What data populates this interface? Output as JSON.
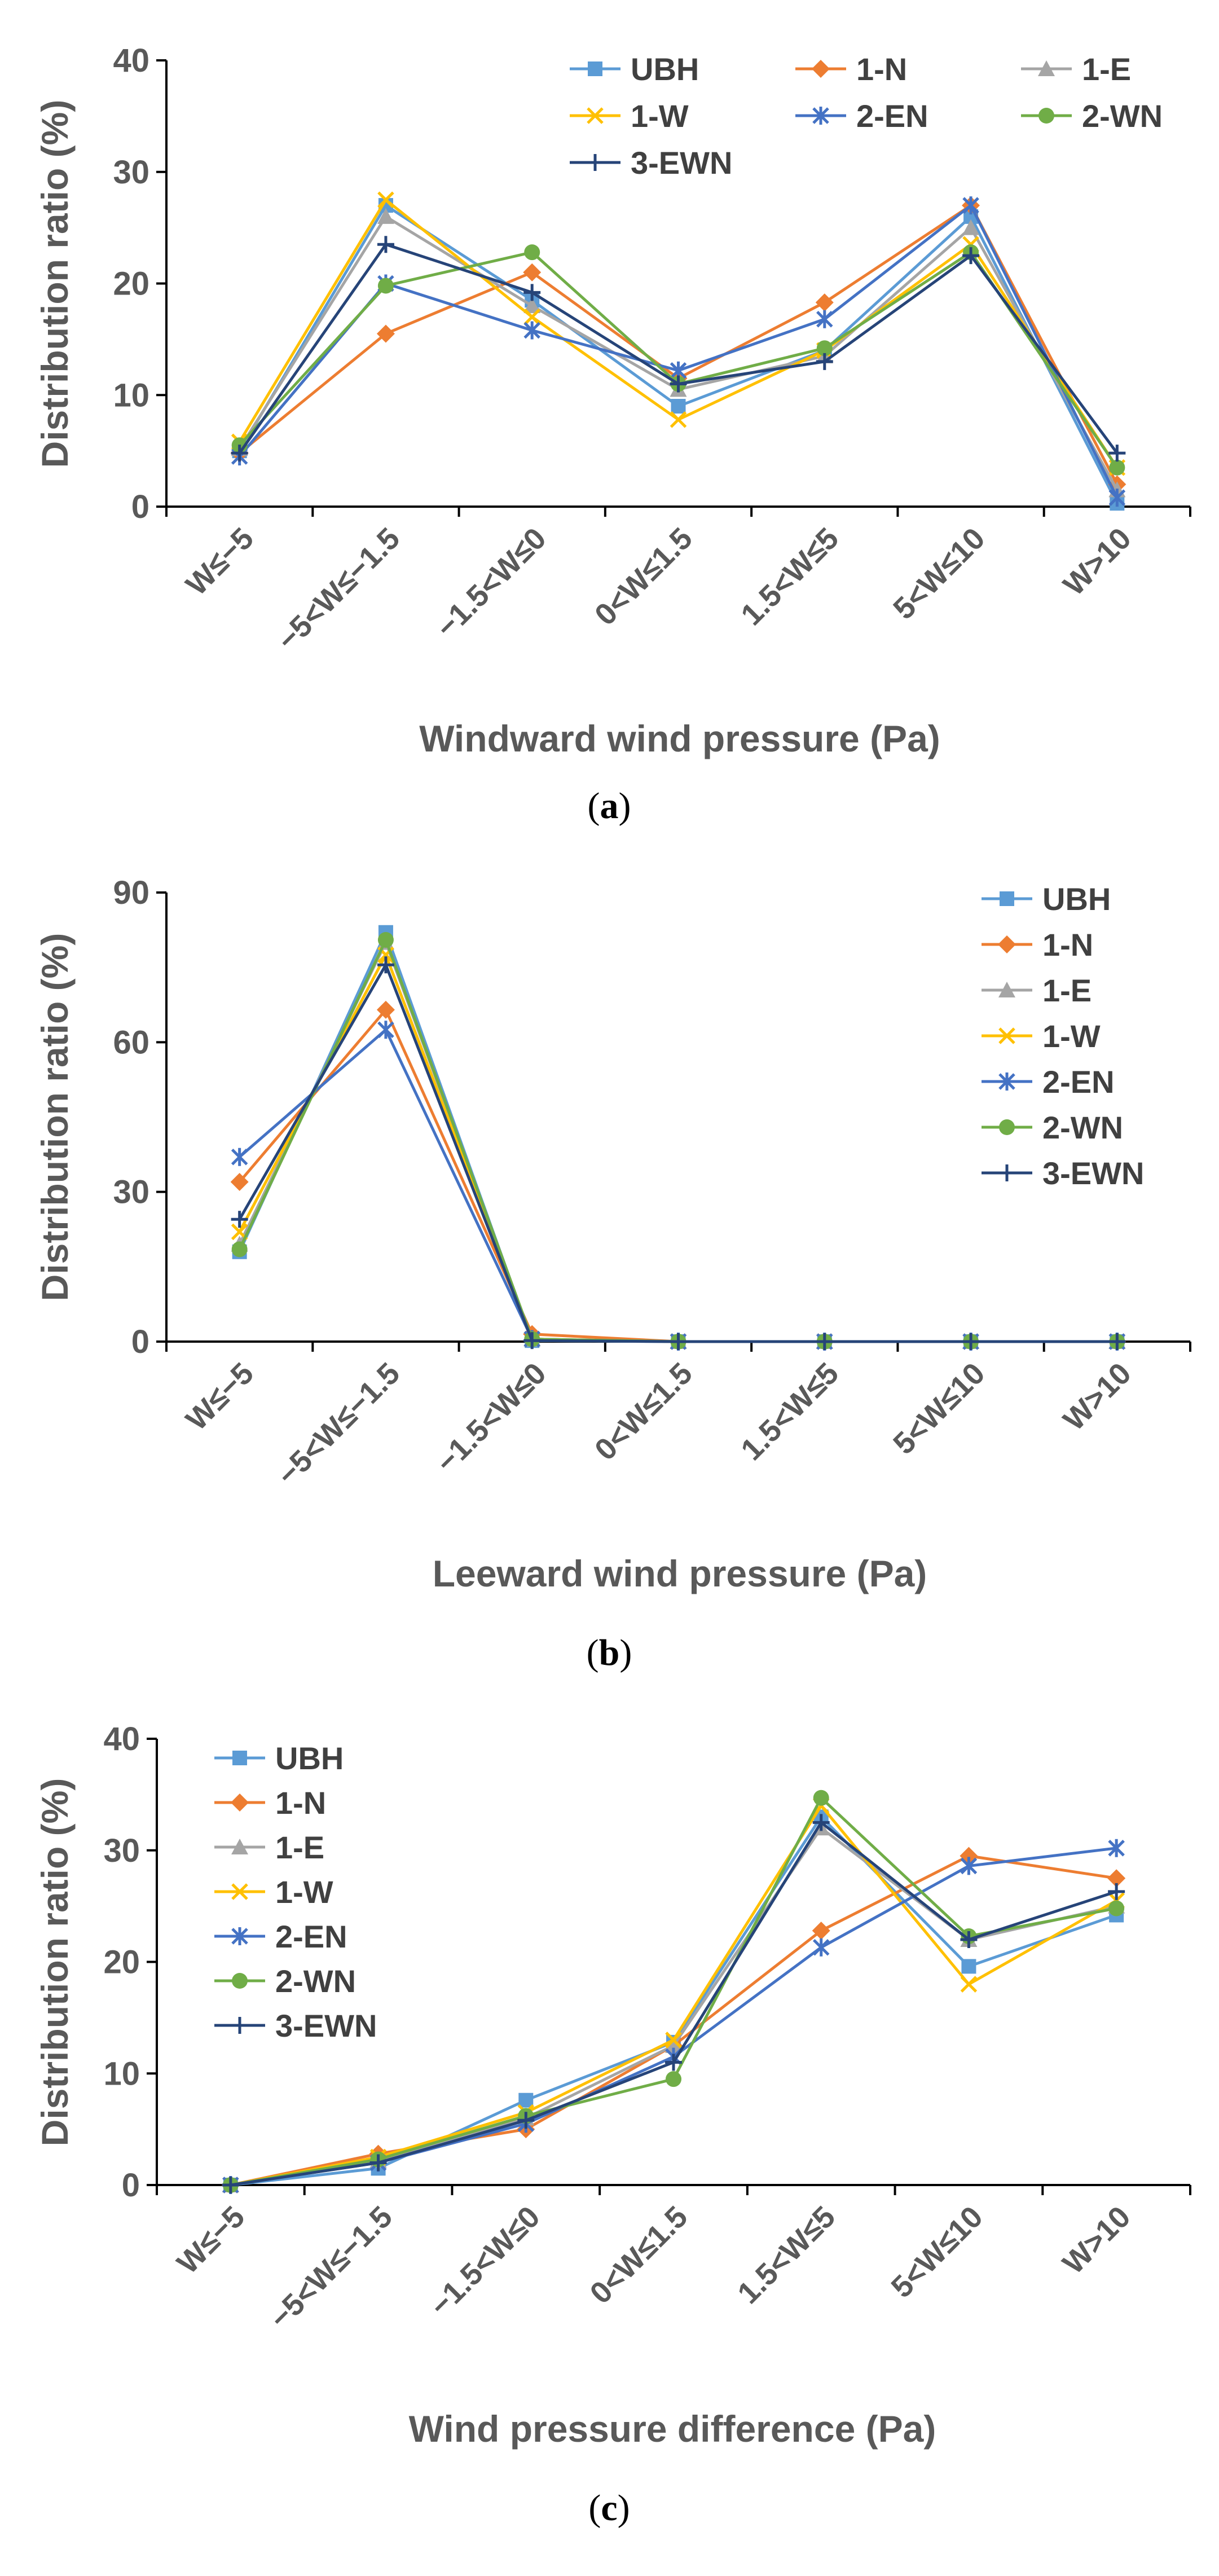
{
  "series_styles": [
    {
      "name": "UBH",
      "color": "#5B9BD5",
      "marker": "square"
    },
    {
      "name": "1-N",
      "color": "#ED7D31",
      "marker": "diamond"
    },
    {
      "name": "1-E",
      "color": "#A5A5A5",
      "marker": "triangle"
    },
    {
      "name": "1-W",
      "color": "#FFC000",
      "marker": "x"
    },
    {
      "name": "2-EN",
      "color": "#4472C4",
      "marker": "star"
    },
    {
      "name": "2-WN",
      "color": "#70AD47",
      "marker": "circle"
    },
    {
      "name": "3-EWN",
      "color": "#264478",
      "marker": "plus"
    }
  ],
  "chart_data": [
    {
      "type": "line",
      "caption": "a",
      "categories": [
        "W≤−5",
        "−5<W≤−1.5",
        "−1.5<W≤0",
        "0<W≤1.5",
        "1.5<W≤5",
        "5<W≤10",
        "W>10"
      ],
      "xlabel": "Windward wind pressure (Pa)",
      "ylabel": "Distribution ratio (%)",
      "ylim": [
        0,
        40
      ],
      "yticks": [
        0,
        10,
        20,
        30,
        40
      ],
      "legend": "top-right-3col",
      "series": [
        {
          "name": "UBH",
          "values": [
            5.0,
            27.0,
            18.5,
            9.0,
            14.0,
            26.0,
            0.3
          ]
        },
        {
          "name": "1-N",
          "values": [
            4.8,
            15.5,
            21.0,
            11.5,
            18.3,
            27.0,
            2.0
          ]
        },
        {
          "name": "1-E",
          "values": [
            5.2,
            26.0,
            18.0,
            10.5,
            13.5,
            25.0,
            1.5
          ]
        },
        {
          "name": "1-W",
          "values": [
            5.8,
            27.5,
            17.0,
            7.8,
            14.0,
            23.5,
            3.5
          ]
        },
        {
          "name": "2-EN",
          "values": [
            4.5,
            20.0,
            15.8,
            12.2,
            16.8,
            27.0,
            0.8
          ]
        },
        {
          "name": "2-WN",
          "values": [
            5.5,
            19.8,
            22.8,
            11.0,
            14.2,
            22.8,
            3.5
          ]
        },
        {
          "name": "3-EWN",
          "values": [
            4.8,
            23.5,
            19.2,
            11.0,
            13.0,
            22.5,
            4.8
          ]
        }
      ]
    },
    {
      "type": "line",
      "caption": "b",
      "categories": [
        "W≤−5",
        "−5<W≤−1.5",
        "−1.5<W≤0",
        "0<W≤1.5",
        "1.5<W≤5",
        "5<W≤10",
        "W>10"
      ],
      "xlabel": "Leeward wind pressure (Pa)",
      "ylabel": "Distribution ratio (%)",
      "ylim": [
        0,
        90
      ],
      "yticks": [
        0,
        30,
        60,
        90
      ],
      "legend": "right-1col",
      "series": [
        {
          "name": "UBH",
          "values": [
            18.0,
            82.0,
            0.2,
            0,
            0,
            0,
            0
          ]
        },
        {
          "name": "1-N",
          "values": [
            32.0,
            66.5,
            1.5,
            0,
            0,
            0,
            0
          ]
        },
        {
          "name": "1-E",
          "values": [
            19.5,
            80.0,
            0.5,
            0,
            0,
            0,
            0
          ]
        },
        {
          "name": "1-W",
          "values": [
            22.0,
            77.5,
            0.5,
            0,
            0,
            0,
            0
          ]
        },
        {
          "name": "2-EN",
          "values": [
            37.0,
            62.5,
            0.5,
            0,
            0,
            0,
            0
          ]
        },
        {
          "name": "2-WN",
          "values": [
            18.5,
            80.5,
            0.5,
            0,
            0,
            0,
            0
          ]
        },
        {
          "name": "3-EWN",
          "values": [
            24.5,
            75.5,
            0.2,
            0,
            0,
            0,
            0
          ]
        }
      ]
    },
    {
      "type": "line",
      "caption": "c",
      "categories": [
        "W≤−5",
        "−5<W≤−1.5",
        "−1.5<W≤0",
        "0<W≤1.5",
        "1.5<W≤5",
        "5<W≤10",
        "W>10"
      ],
      "xlabel": "Wind pressure difference (Pa)",
      "ylabel": "Distribution ratio (%)",
      "ylim": [
        0,
        40
      ],
      "yticks": [
        0,
        10,
        20,
        30,
        40
      ],
      "legend": "top-left-1col",
      "series": [
        {
          "name": "UBH",
          "values": [
            0,
            1.5,
            7.6,
            12.8,
            33.0,
            19.6,
            24.2
          ]
        },
        {
          "name": "1-N",
          "values": [
            0,
            2.8,
            5.0,
            12.5,
            22.8,
            29.5,
            27.5
          ]
        },
        {
          "name": "1-E",
          "values": [
            0,
            2.2,
            6.0,
            12.5,
            32.0,
            22.0,
            25.0
          ]
        },
        {
          "name": "1-W",
          "values": [
            0,
            2.5,
            6.5,
            13.0,
            34.0,
            18.0,
            25.5
          ]
        },
        {
          "name": "2-EN",
          "values": [
            0,
            2.0,
            5.5,
            11.5,
            21.3,
            28.6,
            30.2
          ]
        },
        {
          "name": "2-WN",
          "values": [
            0,
            2.3,
            6.2,
            9.5,
            34.7,
            22.3,
            24.8
          ]
        },
        {
          "name": "3-EWN",
          "values": [
            0,
            2.0,
            5.8,
            11.0,
            32.5,
            22.0,
            26.3
          ]
        }
      ]
    }
  ]
}
